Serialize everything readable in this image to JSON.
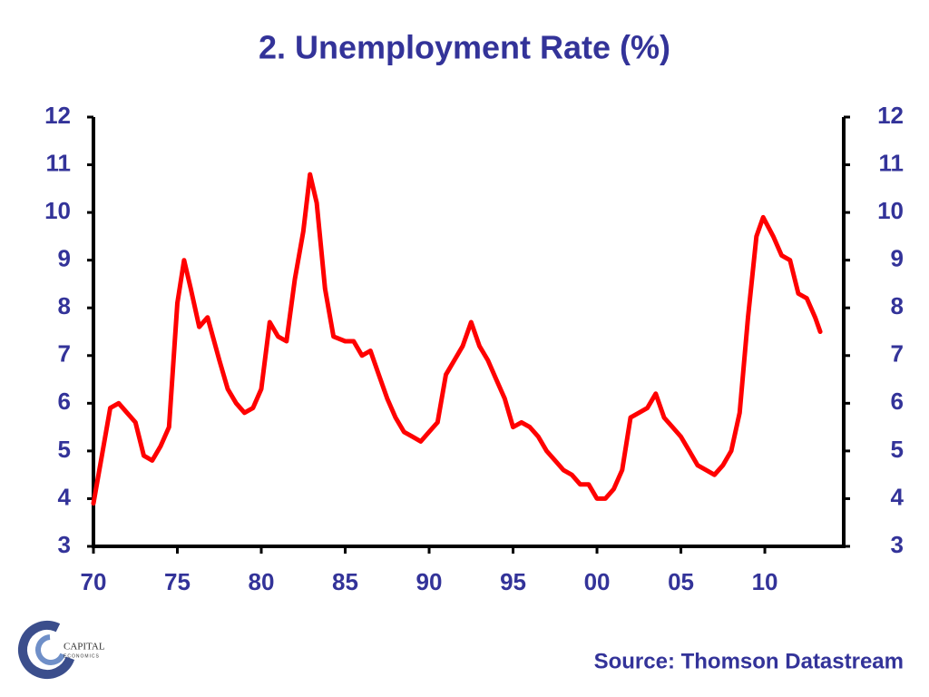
{
  "chart_data": {
    "type": "line",
    "title": "2. Unemployment Rate (%)",
    "source": "Source: Thomson Datastream",
    "logo_text": [
      "CAPITAL",
      "ECONOMICS"
    ],
    "color": "#ff0000",
    "x": [
      1970.0,
      1970.5,
      1971.0,
      1971.5,
      1972.0,
      1972.5,
      1973.0,
      1973.5,
      1974.0,
      1974.5,
      1975.0,
      1975.4,
      1975.8,
      1976.3,
      1976.8,
      1977.5,
      1978.0,
      1978.5,
      1979.0,
      1979.5,
      1980.0,
      1980.5,
      1981.0,
      1981.5,
      1982.0,
      1982.5,
      1982.9,
      1983.3,
      1983.8,
      1984.3,
      1985.0,
      1985.5,
      1986.0,
      1986.5,
      1987.0,
      1987.5,
      1988.0,
      1988.5,
      1989.0,
      1989.5,
      1990.0,
      1990.5,
      1991.0,
      1991.5,
      1992.0,
      1992.5,
      1993.0,
      1993.5,
      1994.0,
      1994.5,
      1995.0,
      1995.5,
      1996.0,
      1996.5,
      1997.0,
      1997.5,
      1998.0,
      1998.5,
      1999.0,
      1999.5,
      2000.0,
      2000.5,
      2001.0,
      2001.5,
      2002.0,
      2002.5,
      2003.0,
      2003.5,
      2004.0,
      2004.5,
      2005.0,
      2005.5,
      2006.0,
      2006.5,
      2007.0,
      2007.5,
      2008.0,
      2008.5,
      2009.0,
      2009.5,
      2009.9,
      2010.5,
      2011.0,
      2011.5,
      2012.0,
      2012.5,
      2013.0,
      2013.3
    ],
    "values": [
      3.9,
      4.9,
      5.9,
      6.0,
      5.8,
      5.6,
      4.9,
      4.8,
      5.1,
      5.5,
      8.1,
      9.0,
      8.4,
      7.6,
      7.8,
      6.9,
      6.3,
      6.0,
      5.8,
      5.9,
      6.3,
      7.7,
      7.4,
      7.3,
      8.6,
      9.6,
      10.8,
      10.2,
      8.4,
      7.4,
      7.3,
      7.3,
      7.0,
      7.1,
      6.6,
      6.1,
      5.7,
      5.4,
      5.3,
      5.2,
      5.4,
      5.6,
      6.6,
      6.9,
      7.2,
      7.7,
      7.2,
      6.9,
      6.5,
      6.1,
      5.5,
      5.6,
      5.5,
      5.3,
      5.0,
      4.8,
      4.6,
      4.5,
      4.3,
      4.3,
      4.0,
      4.0,
      4.2,
      4.6,
      5.7,
      5.8,
      5.9,
      6.2,
      5.7,
      5.5,
      5.3,
      5.0,
      4.7,
      4.6,
      4.5,
      4.7,
      5.0,
      5.8,
      7.8,
      9.5,
      9.9,
      9.5,
      9.1,
      9.0,
      8.3,
      8.2,
      7.8,
      7.5
    ],
    "xlim": [
      1970,
      2014.7
    ],
    "xticks": [
      {
        "value": 1970,
        "label": "70"
      },
      {
        "value": 1975,
        "label": "75"
      },
      {
        "value": 1980,
        "label": "80"
      },
      {
        "value": 1985,
        "label": "85"
      },
      {
        "value": 1990,
        "label": "90"
      },
      {
        "value": 1995,
        "label": "95"
      },
      {
        "value": 2000,
        "label": "00"
      },
      {
        "value": 2005,
        "label": "05"
      },
      {
        "value": 2010,
        "label": "10"
      }
    ],
    "ylim": [
      3,
      12
    ],
    "yticks": [
      3,
      4,
      5,
      6,
      7,
      8,
      9,
      10,
      11,
      12
    ],
    "y2lim": [
      3,
      12
    ],
    "y2ticks": [
      3,
      4,
      5,
      6,
      7,
      8,
      9,
      10,
      11,
      12
    ],
    "grid": false
  }
}
